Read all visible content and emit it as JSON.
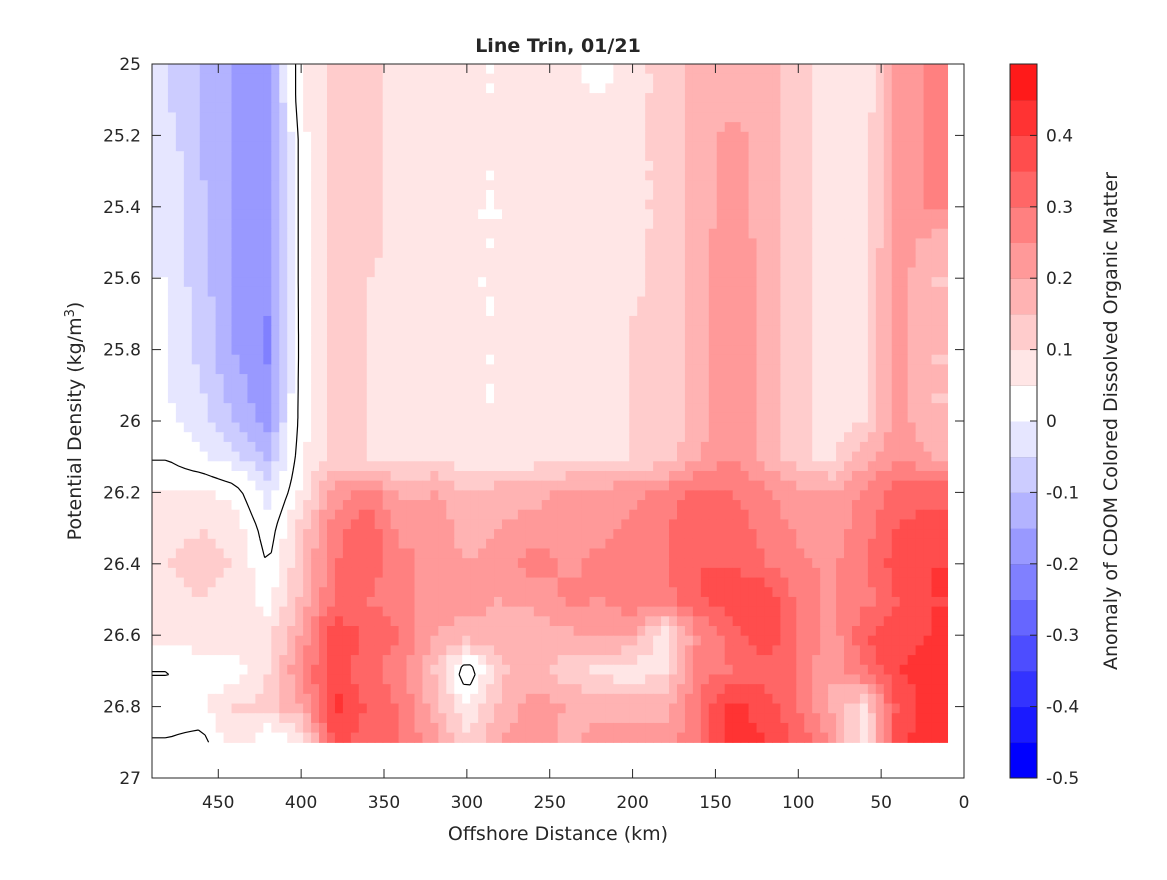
{
  "chart_data": {
    "type": "heatmap",
    "title": "Line Trin, 01/21",
    "xlabel": "Offshore Distance (km)",
    "ylabel": "Potential Density (kg/m3)",
    "ylabel_parts": {
      "main": "Potential Density (kg/m",
      "sup": "3",
      "end": ")"
    },
    "xlim": [
      490,
      0
    ],
    "ylim": [
      25,
      27
    ],
    "x_reversed": true,
    "y_reversed": true,
    "x_ticks": [
      450,
      400,
      350,
      300,
      250,
      200,
      150,
      100,
      50,
      0
    ],
    "x_tick_labels": [
      "450",
      "400",
      "350",
      "300",
      "250",
      "200",
      "150",
      "100",
      "50",
      "0"
    ],
    "y_ticks": [
      25,
      25.2,
      25.4,
      25.6,
      25.8,
      26,
      26.2,
      26.4,
      26.6,
      26.8,
      27
    ],
    "y_tick_labels": [
      "25",
      "25.2",
      "25.4",
      "25.6",
      "25.8",
      "26",
      "26.2",
      "26.4",
      "26.6",
      "26.8",
      "27"
    ],
    "colorbar": {
      "label": "Anomaly of CDOM Colored Dissolved Organic Matter",
      "range": [
        -0.5,
        0.5
      ],
      "tick_values": [
        0.4,
        0.3,
        0.2,
        0.1,
        0,
        -0.1,
        -0.2,
        -0.3,
        -0.4,
        -0.5
      ],
      "tick_labels": [
        "0.4",
        "0.3",
        "0.2",
        "0.1",
        "0",
        "-0.1",
        "-0.2",
        "-0.3",
        "-0.4",
        "-0.5"
      ],
      "levels": [
        -0.5,
        -0.45,
        -0.4,
        -0.35,
        -0.3,
        -0.25,
        -0.2,
        -0.15,
        -0.1,
        -0.05,
        0,
        0.05,
        0.1,
        0.15,
        0.2,
        0.25,
        0.3,
        0.35,
        0.4,
        0.45,
        0.5
      ],
      "colors": [
        "#0000ff",
        "#1a1aff",
        "#3333ff",
        "#4d4dff",
        "#6666ff",
        "#8080ff",
        "#9999ff",
        "#b3b3ff",
        "#ccccff",
        "#e6e6ff",
        "#ffffff",
        "#ffffff",
        "#ffe6e6",
        "#ffcccc",
        "#ffb3b3",
        "#ff9999",
        "#ff8080",
        "#ff6666",
        "#ff4d4d",
        "#ff3333",
        "#ff1a1a",
        "#ff0000"
      ],
      "tick_positions_ordered_top_to_bottom": true
    },
    "x": [
      480,
      460,
      440,
      420,
      400,
      380,
      360,
      340,
      320,
      300,
      280,
      260,
      240,
      220,
      200,
      180,
      160,
      140,
      120,
      100,
      80,
      60,
      40,
      20
    ],
    "y": [
      25.0,
      25.1,
      25.2,
      25.3,
      25.4,
      25.5,
      25.6,
      25.7,
      25.8,
      25.9,
      26.0,
      26.1,
      26.2,
      26.3,
      26.4,
      26.5,
      26.6,
      26.7,
      26.8,
      26.9
    ],
    "z": [
      [
        -0.1,
        -0.15,
        -0.2,
        -0.22,
        0.05,
        0.12,
        0.12,
        0.08,
        0.06,
        0.05,
        0.05,
        0.07,
        0.07,
        0.02,
        0.08,
        0.12,
        0.17,
        0.18,
        0.17,
        0.12,
        0.08,
        0.05,
        0.23,
        0.26
      ],
      [
        -0.1,
        -0.15,
        -0.2,
        -0.22,
        0.05,
        0.12,
        0.12,
        0.08,
        0.06,
        0.05,
        0.05,
        0.07,
        0.07,
        0.05,
        0.08,
        0.12,
        0.17,
        0.18,
        0.17,
        0.12,
        0.08,
        0.05,
        0.23,
        0.26
      ],
      [
        -0.08,
        -0.15,
        -0.2,
        -0.24,
        0.03,
        0.12,
        0.12,
        0.08,
        0.1,
        0.05,
        0.05,
        0.07,
        0.07,
        0.07,
        0.08,
        0.12,
        0.17,
        0.22,
        0.17,
        0.12,
        0.08,
        0.08,
        0.23,
        0.26
      ],
      [
        -0.07,
        -0.15,
        -0.2,
        -0.24,
        0.03,
        0.12,
        0.12,
        0.08,
        0.08,
        0.05,
        0.05,
        0.07,
        0.07,
        0.07,
        0.08,
        0.12,
        0.17,
        0.22,
        0.17,
        0.12,
        0.08,
        0.08,
        0.23,
        0.26
      ],
      [
        -0.06,
        -0.14,
        -0.2,
        -0.24,
        0.03,
        0.12,
        0.12,
        0.08,
        0.08,
        0.05,
        0.05,
        0.07,
        0.07,
        0.07,
        0.08,
        0.12,
        0.17,
        0.23,
        0.17,
        0.12,
        0.08,
        0.08,
        0.23,
        0.26
      ],
      [
        -0.06,
        -0.14,
        -0.2,
        -0.24,
        0.03,
        0.12,
        0.12,
        0.08,
        0.08,
        0.05,
        0.05,
        0.07,
        0.07,
        0.07,
        0.08,
        0.12,
        0.17,
        0.25,
        0.17,
        0.12,
        0.08,
        0.08,
        0.23,
        0.18
      ],
      [
        -0.05,
        -0.14,
        -0.2,
        -0.24,
        0.03,
        0.12,
        0.1,
        0.08,
        0.08,
        0.05,
        0.05,
        0.07,
        0.07,
        0.07,
        0.08,
        0.12,
        0.17,
        0.25,
        0.17,
        0.12,
        0.08,
        0.1,
        0.23,
        0.15
      ],
      [
        -0.05,
        -0.12,
        -0.2,
        -0.25,
        0.03,
        0.12,
        0.1,
        0.06,
        0.06,
        0.05,
        0.05,
        0.07,
        0.07,
        0.07,
        0.1,
        0.12,
        0.17,
        0.25,
        0.17,
        0.12,
        0.08,
        0.1,
        0.23,
        0.15
      ],
      [
        -0.05,
        -0.12,
        -0.2,
        -0.26,
        0.03,
        0.12,
        0.1,
        0.06,
        0.06,
        0.05,
        0.05,
        0.07,
        0.07,
        0.07,
        0.1,
        0.12,
        0.17,
        0.25,
        0.17,
        0.12,
        0.08,
        0.1,
        0.23,
        0.15
      ],
      [
        -0.05,
        -0.1,
        -0.18,
        -0.24,
        0.03,
        0.12,
        0.1,
        0.06,
        0.06,
        0.05,
        0.05,
        0.07,
        0.07,
        0.07,
        0.1,
        0.12,
        0.17,
        0.25,
        0.17,
        0.12,
        0.08,
        0.1,
        0.23,
        0.15
      ],
      [
        -0.04,
        -0.08,
        -0.15,
        -0.22,
        0.03,
        0.12,
        0.1,
        0.06,
        0.06,
        0.05,
        0.05,
        0.07,
        0.07,
        0.07,
        0.1,
        0.12,
        0.17,
        0.25,
        0.17,
        0.12,
        0.08,
        0.1,
        0.23,
        0.15
      ],
      [
        0.0,
        -0.04,
        -0.08,
        -0.16,
        0.04,
        0.12,
        0.1,
        0.08,
        0.1,
        0.05,
        0.05,
        0.07,
        0.07,
        0.07,
        0.1,
        0.12,
        0.2,
        0.25,
        0.18,
        0.12,
        0.08,
        0.18,
        0.25,
        0.2
      ],
      [
        0.05,
        0.06,
        0.03,
        -0.08,
        0.06,
        0.22,
        0.28,
        0.18,
        0.2,
        0.15,
        0.18,
        0.18,
        0.22,
        0.22,
        0.24,
        0.27,
        0.32,
        0.3,
        0.26,
        0.22,
        0.2,
        0.26,
        0.32,
        0.33
      ],
      [
        0.08,
        0.1,
        0.08,
        -0.03,
        0.12,
        0.28,
        0.33,
        0.24,
        0.25,
        0.17,
        0.2,
        0.22,
        0.23,
        0.24,
        0.26,
        0.3,
        0.35,
        0.33,
        0.28,
        0.24,
        0.22,
        0.28,
        0.35,
        0.38
      ],
      [
        0.1,
        0.12,
        0.1,
        0.0,
        0.14,
        0.3,
        0.33,
        0.26,
        0.24,
        0.2,
        0.22,
        0.28,
        0.24,
        0.26,
        0.28,
        0.3,
        0.35,
        0.35,
        0.3,
        0.26,
        0.24,
        0.3,
        0.38,
        0.4
      ],
      [
        0.08,
        0.1,
        0.08,
        0.03,
        0.16,
        0.3,
        0.3,
        0.27,
        0.23,
        0.22,
        0.2,
        0.22,
        0.26,
        0.25,
        0.28,
        0.28,
        0.35,
        0.38,
        0.4,
        0.28,
        0.24,
        0.28,
        0.35,
        0.4
      ],
      [
        0.06,
        0.08,
        0.1,
        0.08,
        0.2,
        0.4,
        0.34,
        0.3,
        0.2,
        0.18,
        0.18,
        0.16,
        0.18,
        0.22,
        0.2,
        0.06,
        0.25,
        0.32,
        0.4,
        0.3,
        0.22,
        0.35,
        0.38,
        0.4
      ],
      [
        0.0,
        0.02,
        0.02,
        0.1,
        0.25,
        0.38,
        0.32,
        0.26,
        0.15,
        -0.05,
        0.14,
        0.18,
        0.12,
        0.08,
        0.06,
        0.1,
        0.28,
        0.3,
        0.32,
        0.3,
        0.2,
        0.3,
        0.4,
        0.42
      ],
      [
        0.04,
        0.05,
        0.1,
        0.12,
        0.2,
        0.42,
        0.34,
        0.3,
        0.18,
        0.05,
        0.16,
        0.22,
        0.2,
        0.18,
        0.2,
        0.18,
        0.3,
        0.42,
        0.38,
        0.3,
        0.2,
        0.1,
        0.36,
        0.42
      ],
      [
        0.0,
        -0.02,
        0.1,
        0.0,
        0.05,
        0.35,
        0.34,
        0.3,
        0.22,
        0.12,
        0.2,
        0.24,
        0.18,
        0.22,
        0.2,
        0.22,
        0.3,
        0.42,
        0.4,
        0.34,
        0.24,
        0.05,
        0.4,
        0.42
      ]
    ]
  }
}
